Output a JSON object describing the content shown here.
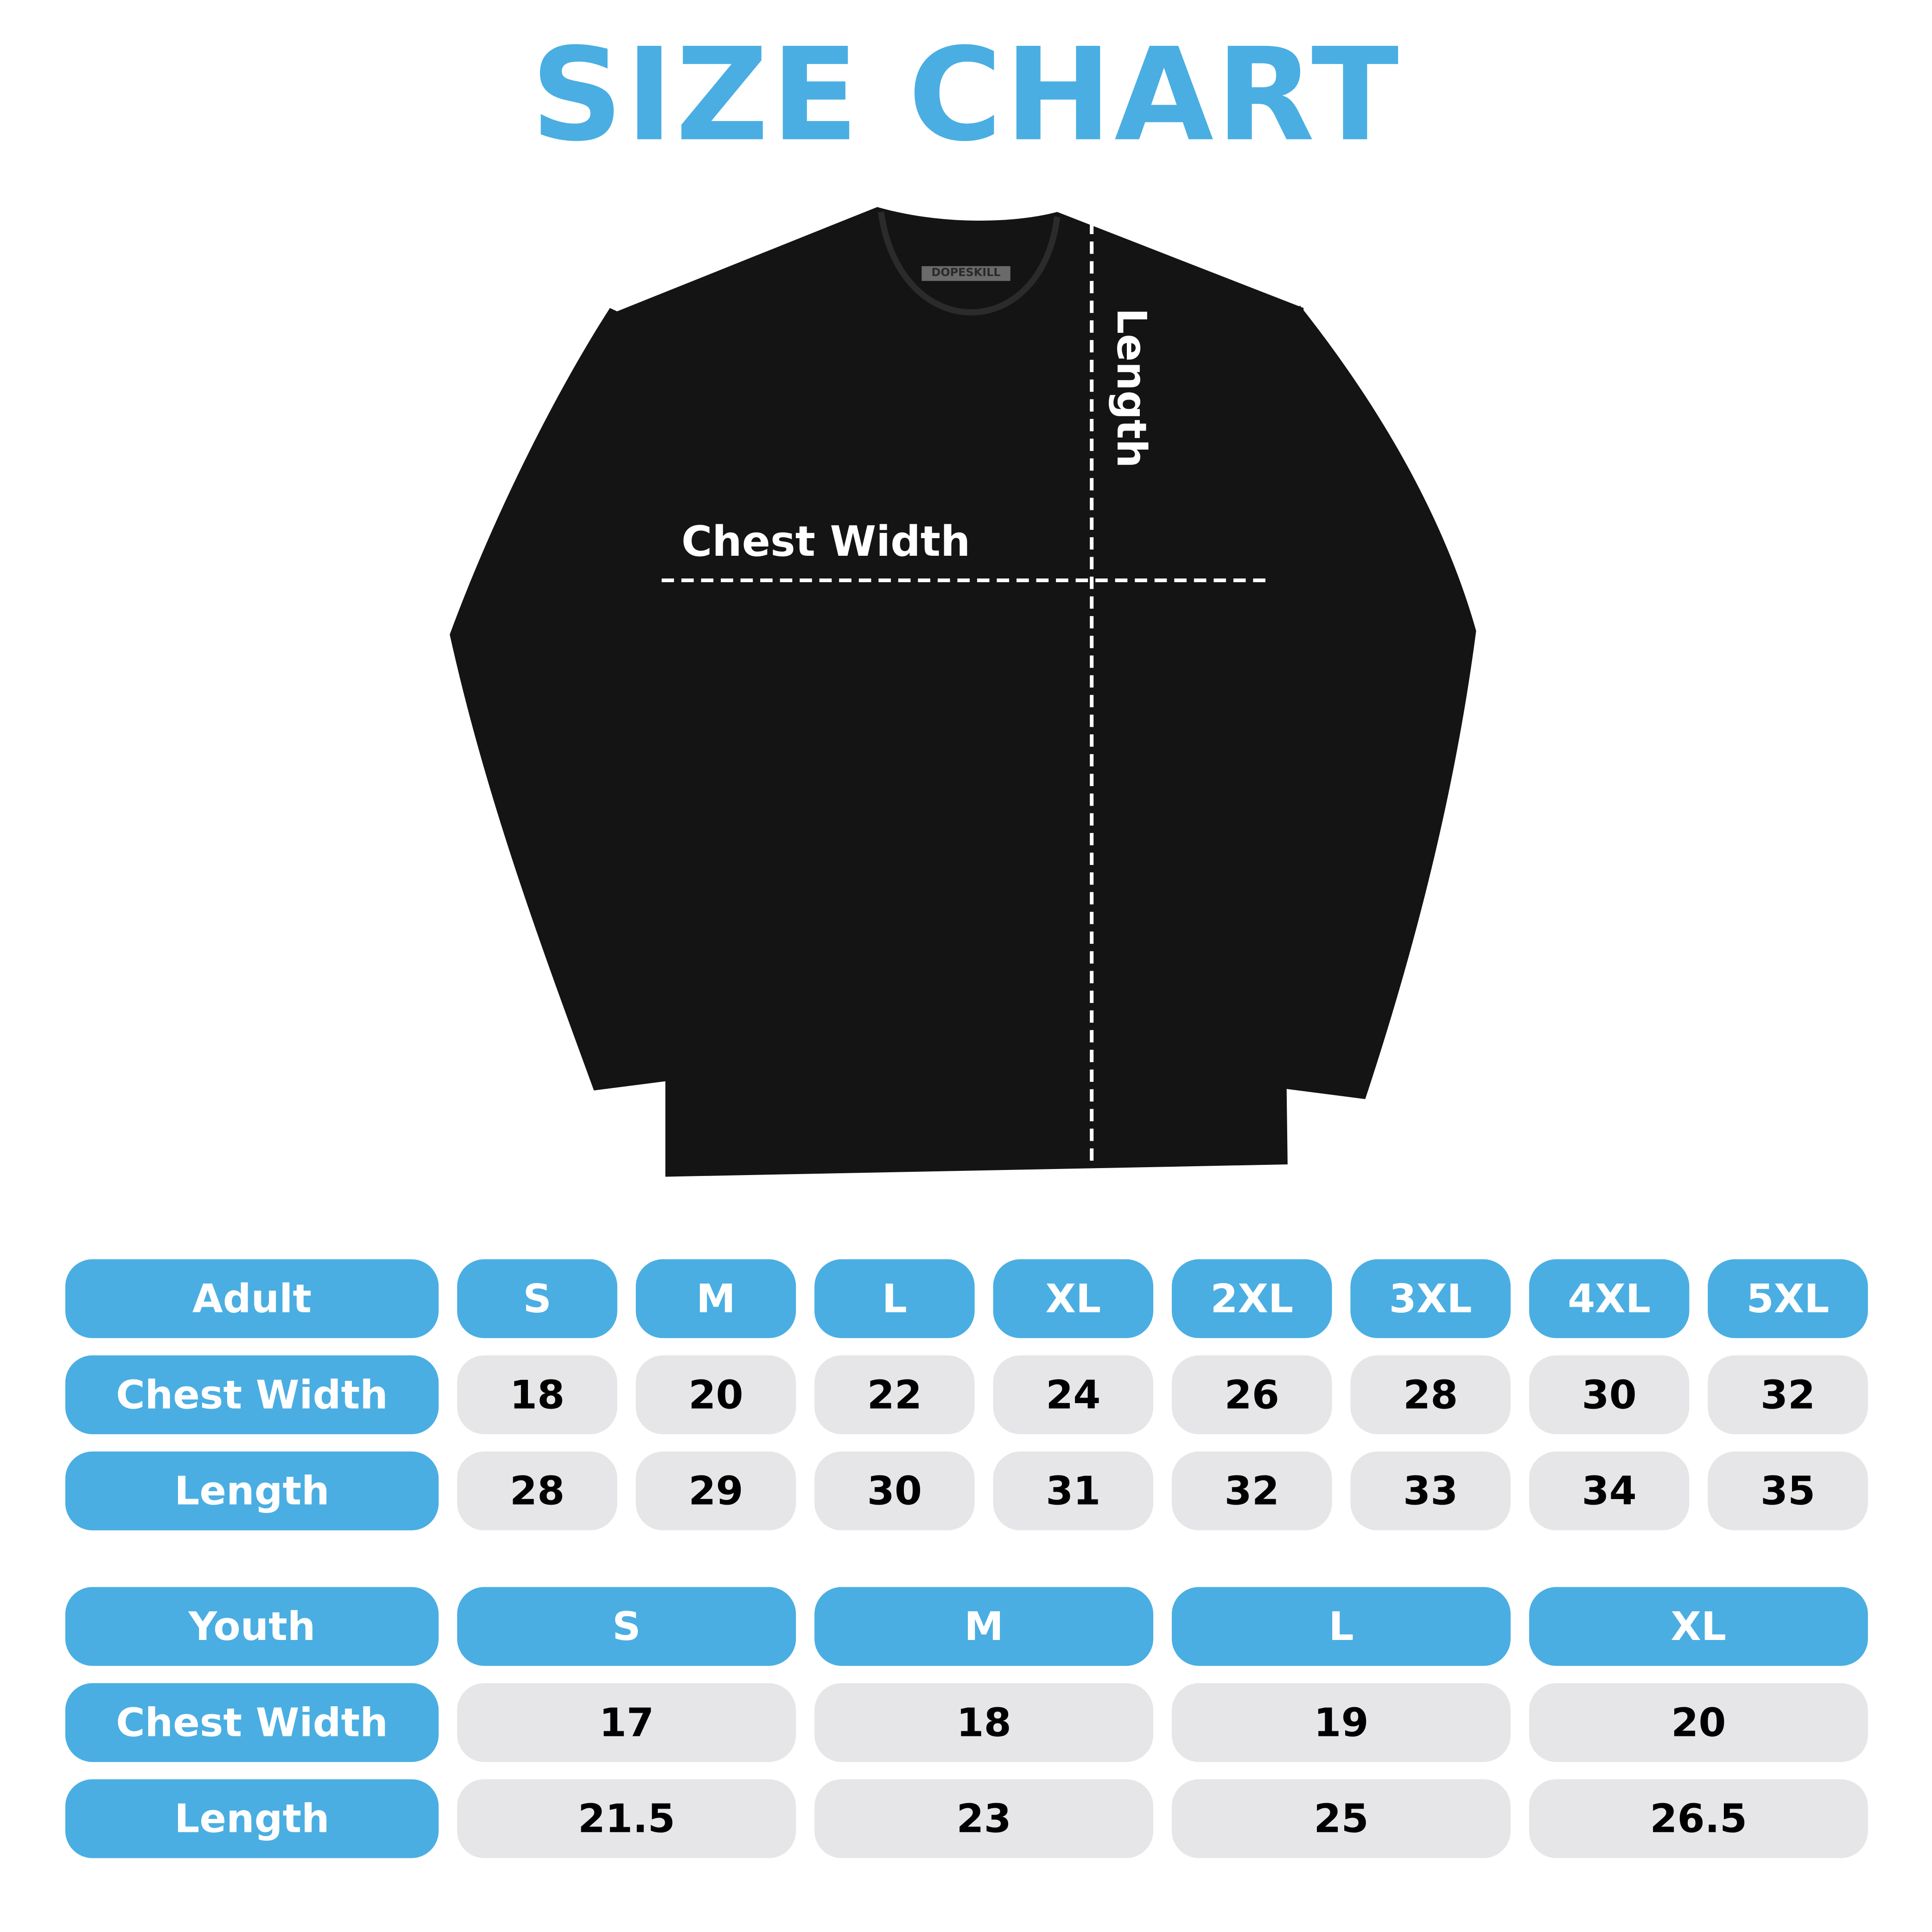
{
  "title": "SIZE CHART",
  "colors": {
    "accent": "#4aaee2",
    "value_bg": "#e6e6e8",
    "shirt": "#141414"
  },
  "shirt": {
    "brand_tag": "DOPESKILL",
    "chest_label": "Chest Width",
    "length_label": "Length"
  },
  "adult": {
    "header": "Adult",
    "sizes": [
      "S",
      "M",
      "L",
      "XL",
      "2XL",
      "3XL",
      "4XL",
      "5XL"
    ],
    "rows": [
      {
        "label": "Chest Width",
        "values": [
          "18",
          "20",
          "22",
          "24",
          "26",
          "28",
          "30",
          "32"
        ]
      },
      {
        "label": "Length",
        "values": [
          "28",
          "29",
          "30",
          "31",
          "32",
          "33",
          "34",
          "35"
        ]
      }
    ]
  },
  "youth": {
    "header": "Youth",
    "sizes": [
      "S",
      "M",
      "L",
      "XL"
    ],
    "rows": [
      {
        "label": "Chest Width",
        "values": [
          "17",
          "18",
          "19",
          "20"
        ]
      },
      {
        "label": "Length",
        "values": [
          "21.5",
          "23",
          "25",
          "26.5"
        ]
      }
    ]
  }
}
